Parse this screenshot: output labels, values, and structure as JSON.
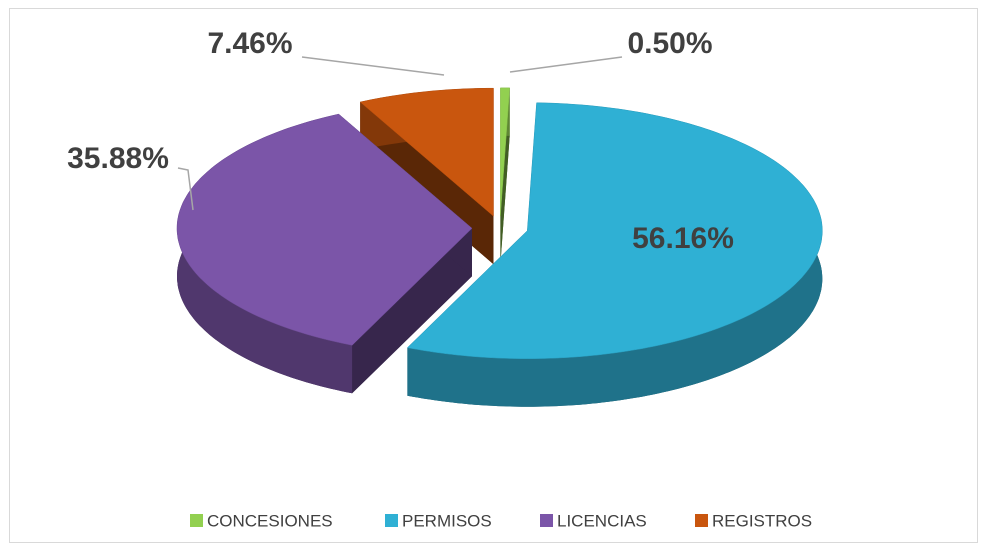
{
  "chart_data": {
    "type": "pie3d",
    "categories": [
      "CONCESIONES",
      "PERMISOS",
      "LICENCIAS",
      "REGISTROS"
    ],
    "values": [
      0.5,
      56.16,
      35.88,
      7.46
    ],
    "value_labels": [
      "0.50%",
      "56.16%",
      "35.88%",
      "7.46%"
    ],
    "colors": [
      "#92d050",
      "#2fb0d4",
      "#7b55a8",
      "#c9560e"
    ],
    "legend": "bottom"
  }
}
